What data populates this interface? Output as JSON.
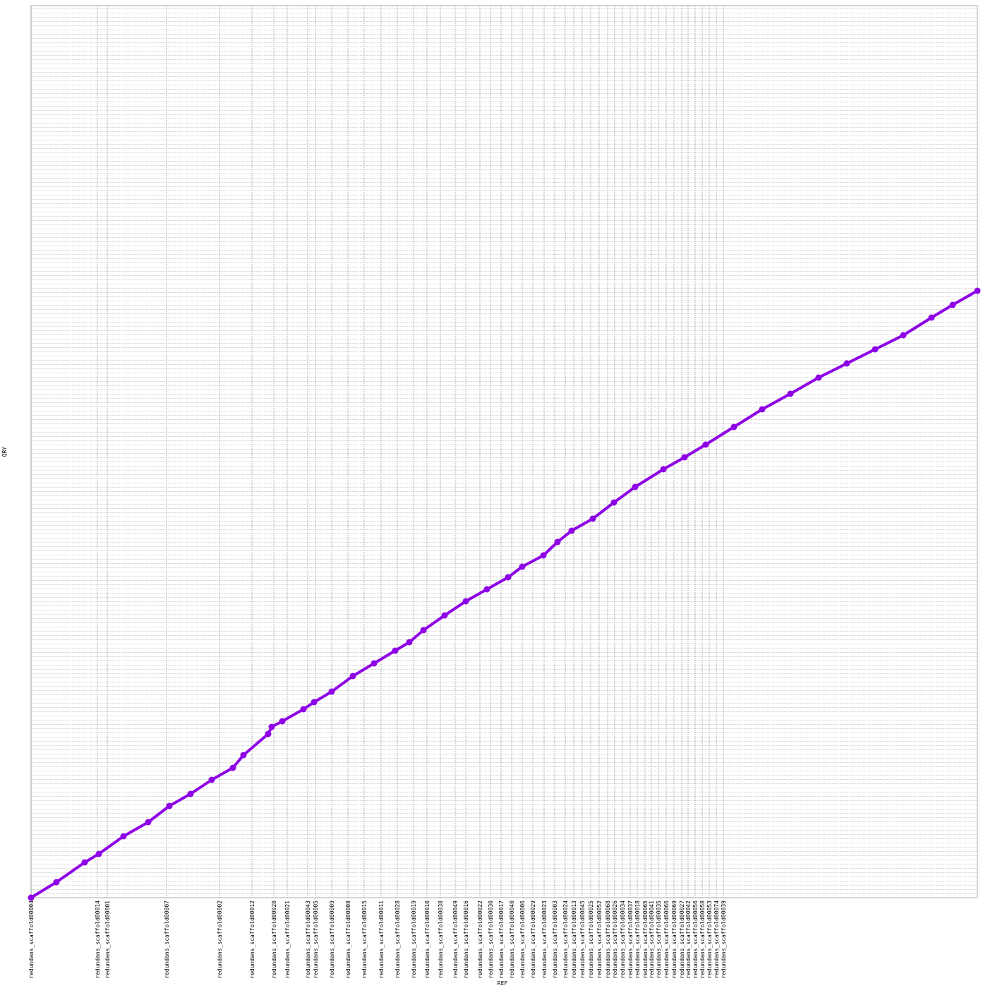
{
  "chart_data": {
    "type": "scatter",
    "xlabel": "REF",
    "ylabel": "QRY",
    "xlim": [
      0,
      1341
    ],
    "ylim": [
      0,
      1264
    ],
    "xticks": [
      {
        "value": 0,
        "label": "redundans_scaffold00004"
      },
      {
        "value": 94,
        "label": "redundans_scaffold00014"
      },
      {
        "value": 108,
        "label": "redundans_scaffold00001"
      },
      {
        "value": 192,
        "label": "redundans_scaffold00007"
      },
      {
        "value": 267,
        "label": "redundans_scaffold00002"
      },
      {
        "value": 313,
        "label": "redundans_scaffold00012"
      },
      {
        "value": 344,
        "label": "redundans_scaffold00020"
      },
      {
        "value": 363,
        "label": "redundans_scaffold00021"
      },
      {
        "value": 392,
        "label": "redundans_scaffold00043"
      },
      {
        "value": 403,
        "label": "redundans_scaffold00005"
      },
      {
        "value": 426,
        "label": "redundans_scaffold00009"
      },
      {
        "value": 449,
        "label": "redundans_scaffold00008"
      },
      {
        "value": 472,
        "label": "redundans_scaffold00015"
      },
      {
        "value": 496,
        "label": "redundans_scaffold00011"
      },
      {
        "value": 519,
        "label": "redundans_scaffold00028"
      },
      {
        "value": 542,
        "label": "redundans_scaffold00019"
      },
      {
        "value": 561,
        "label": "redundans_scaffold00010"
      },
      {
        "value": 580,
        "label": "redundans_scaffold00038"
      },
      {
        "value": 601,
        "label": "redundans_scaffold00049"
      },
      {
        "value": 616,
        "label": "redundans_scaffold00016"
      },
      {
        "value": 636,
        "label": "redundans_scaffold00022"
      },
      {
        "value": 651,
        "label": "redundans_scaffold00030"
      },
      {
        "value": 666,
        "label": "redundans_scaffold00017"
      },
      {
        "value": 681,
        "label": "redundans_scaffold00040"
      },
      {
        "value": 696,
        "label": "redundans_scaffold00006"
      },
      {
        "value": 711,
        "label": "redundans_scaffold00029"
      },
      {
        "value": 727,
        "label": "redundans_scaffold00023"
      },
      {
        "value": 742,
        "label": "redundans_scaffold00003"
      },
      {
        "value": 757,
        "label": "redundans_scaffold00024"
      },
      {
        "value": 769,
        "label": "redundans_scaffold00013"
      },
      {
        "value": 781,
        "label": "redundans_scaffold00045"
      },
      {
        "value": 793,
        "label": "redundans_scaffold00025"
      },
      {
        "value": 805,
        "label": "redundans_scaffold00052"
      },
      {
        "value": 817,
        "label": "redundans_scaffold00068"
      },
      {
        "value": 827,
        "label": "redundans_scaffold00026"
      },
      {
        "value": 838,
        "label": "redundans_scaffold00034"
      },
      {
        "value": 849,
        "label": "redundans_scaffold00037"
      },
      {
        "value": 859,
        "label": "redundans_scaffold00018"
      },
      {
        "value": 870,
        "label": "redundans_scaffold00065"
      },
      {
        "value": 879,
        "label": "redundans_scaffold00041"
      },
      {
        "value": 889,
        "label": "redundans_scaffold00035"
      },
      {
        "value": 900,
        "label": "redundans_scaffold00066"
      },
      {
        "value": 911,
        "label": "redundans_scaffold00069"
      },
      {
        "value": 922,
        "label": "redundans_scaffold00027"
      },
      {
        "value": 931,
        "label": "redundans_scaffold00042"
      },
      {
        "value": 941,
        "label": "redundans_scaffold00056"
      },
      {
        "value": 951,
        "label": "redundans_scaffold00058"
      },
      {
        "value": 961,
        "label": "redundans_scaffold00053"
      },
      {
        "value": 971,
        "label": "redundans_scaffold00074"
      },
      {
        "value": 981,
        "label": "redundans_scaffold00039"
      }
    ],
    "grid": true,
    "series": [
      {
        "color": "#8e00e6",
        "x": [
          0,
          36,
          76,
          96,
          131,
          166,
          196,
          226,
          256,
          286,
          301,
          336,
          341,
          356,
          386,
          401,
          426,
          456,
          486,
          516,
          536,
          556,
          586,
          616,
          646,
          676,
          696,
          726,
          746,
          766,
          796,
          826,
          856,
          896,
          926,
          956,
          996,
          1036,
          1076,
          1116,
          1156,
          1196,
          1236,
          1276,
          1306,
          1341
        ],
        "values": [
          0,
          22,
          50,
          62,
          87,
          107,
          130,
          147,
          167,
          184,
          202,
          232,
          242,
          250,
          267,
          277,
          292,
          314,
          332,
          350,
          362,
          379,
          400,
          420,
          437,
          454,
          469,
          485,
          504,
          520,
          537,
          560,
          582,
          607,
          624,
          642,
          667,
          692,
          714,
          737,
          757,
          777,
          797,
          822,
          840,
          860
        ]
      }
    ]
  }
}
